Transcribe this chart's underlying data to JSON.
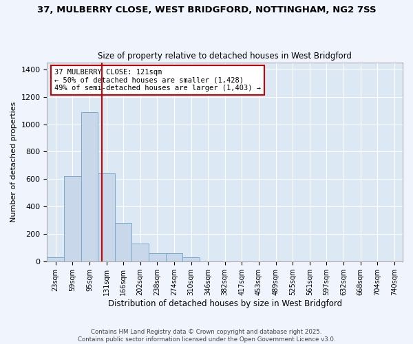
{
  "title1": "37, MULBERRY CLOSE, WEST BRIDGFORD, NOTTINGHAM, NG2 7SS",
  "title2": "Size of property relative to detached houses in West Bridgford",
  "xlabel": "Distribution of detached houses by size in West Bridgford",
  "ylabel": "Number of detached properties",
  "categories": [
    "23sqm",
    "59sqm",
    "95sqm",
    "131sqm",
    "166sqm",
    "202sqm",
    "238sqm",
    "274sqm",
    "310sqm",
    "346sqm",
    "382sqm",
    "417sqm",
    "453sqm",
    "489sqm",
    "525sqm",
    "561sqm",
    "597sqm",
    "632sqm",
    "668sqm",
    "704sqm",
    "740sqm"
  ],
  "values": [
    30,
    620,
    1090,
    640,
    280,
    130,
    60,
    60,
    30,
    0,
    0,
    0,
    0,
    0,
    0,
    0,
    0,
    0,
    0,
    0,
    0
  ],
  "bar_color": "#c8d8ea",
  "bar_edge_color": "#7aaac8",
  "vline_color": "#cc0000",
  "ylim": [
    0,
    1450
  ],
  "yticks": [
    0,
    200,
    400,
    600,
    800,
    1000,
    1200,
    1400
  ],
  "annotation_text": "37 MULBERRY CLOSE: 121sqm\n← 50% of detached houses are smaller (1,428)\n49% of semi-detached houses are larger (1,403) →",
  "annotation_box_color": "#ffffff",
  "annotation_box_edge": "#cc0000",
  "fig_bg_color": "#f0f4fc",
  "plot_bg_color": "#dde8f5",
  "grid_color": "#ffffff",
  "footer1": "Contains HM Land Registry data © Crown copyright and database right 2025.",
  "footer2": "Contains public sector information licensed under the Open Government Licence v3.0."
}
